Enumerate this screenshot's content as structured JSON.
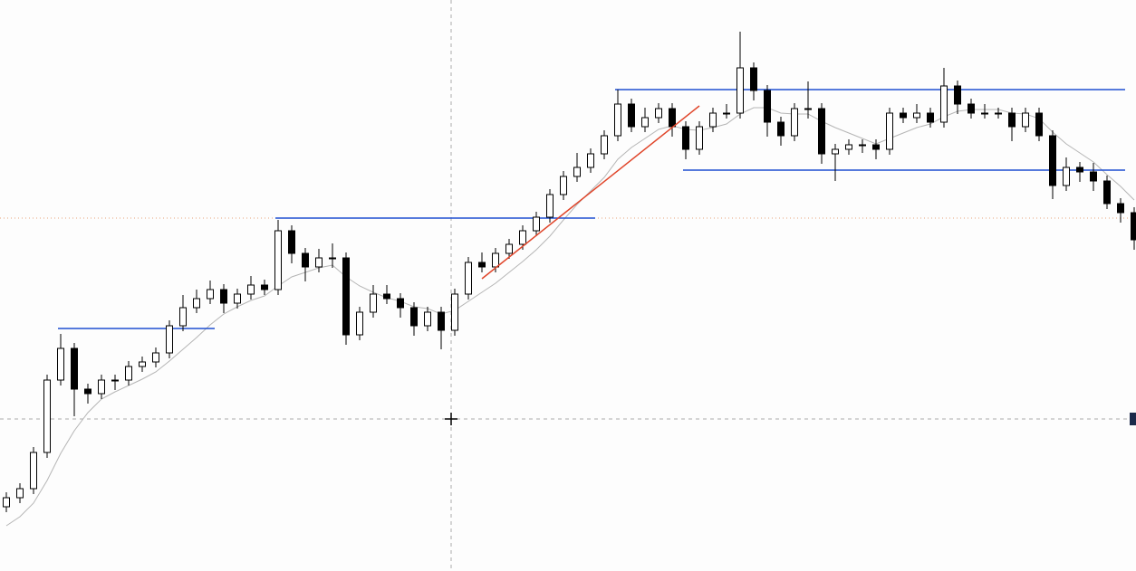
{
  "chart_data": {
    "type": "candlestick",
    "ylim": [
      0,
      631
    ],
    "up_color": "#ffffff",
    "down_color": "#000000",
    "edge_color": "#000000",
    "open": [
      71,
      81,
      91,
      131,
      211,
      246,
      201,
      196,
      211,
      211,
      226,
      231,
      241,
      271,
      291,
      301,
      311,
      296,
      306,
      316,
      311,
      376,
      351,
      336,
      346,
      346,
      261,
      286,
      306,
      301,
      291,
      271,
      286,
      266,
      306,
      341,
      336,
      351,
      361,
      376,
      391,
      416,
      436,
      446,
      461,
      481,
      516,
      491,
      501,
      511,
      491,
      466,
      491,
      506,
      506,
      556,
      531,
      496,
      481,
      511,
      511,
      461,
      466,
      471,
      471,
      466,
      506,
      501,
      506,
      496,
      536,
      516,
      506,
      506,
      506,
      491,
      506,
      481,
      426,
      446,
      441,
      431,
      406,
      396
    ],
    "high": [
      87,
      97,
      137,
      217,
      262,
      252,
      207,
      217,
      217,
      232,
      237,
      247,
      277,
      305,
      311,
      321,
      317,
      312,
      326,
      322,
      388,
      382,
      357,
      356,
      362,
      352,
      292,
      316,
      316,
      307,
      297,
      292,
      292,
      312,
      347,
      352,
      357,
      367,
      382,
      397,
      422,
      442,
      462,
      467,
      487,
      532,
      522,
      512,
      517,
      517,
      497,
      497,
      512,
      516,
      596,
      562,
      537,
      502,
      517,
      541,
      517,
      472,
      477,
      477,
      477,
      512,
      512,
      516,
      512,
      556,
      542,
      522,
      516,
      512,
      512,
      512,
      512,
      487,
      457,
      452,
      451,
      437,
      412,
      402
    ],
    "low": [
      65,
      75,
      85,
      125,
      205,
      171,
      185,
      190,
      200,
      205,
      220,
      225,
      235,
      265,
      285,
      295,
      285,
      290,
      300,
      305,
      305,
      340,
      320,
      330,
      335,
      250,
      255,
      280,
      295,
      280,
      260,
      265,
      245,
      260,
      300,
      330,
      330,
      345,
      355,
      370,
      385,
      410,
      430,
      440,
      455,
      475,
      485,
      485,
      495,
      480,
      455,
      460,
      485,
      500,
      500,
      520,
      480,
      470,
      475,
      500,
      450,
      431,
      460,
      462,
      455,
      460,
      495,
      495,
      490,
      490,
      505,
      500,
      500,
      500,
      475,
      485,
      475,
      411,
      420,
      430,
      420,
      400,
      385,
      355
    ],
    "close": [
      81,
      91,
      131,
      211,
      246,
      201,
      196,
      211,
      211,
      226,
      231,
      241,
      271,
      291,
      301,
      311,
      296,
      306,
      316,
      311,
      376,
      351,
      336,
      346,
      346,
      261,
      286,
      306,
      301,
      291,
      271,
      286,
      266,
      306,
      341,
      336,
      351,
      361,
      376,
      391,
      416,
      436,
      446,
      461,
      481,
      516,
      491,
      501,
      511,
      491,
      466,
      491,
      506,
      506,
      556,
      531,
      496,
      481,
      511,
      511,
      461,
      466,
      471,
      471,
      466,
      506,
      501,
      506,
      496,
      536,
      516,
      506,
      506,
      506,
      491,
      506,
      481,
      426,
      446,
      441,
      431,
      406,
      396,
      366
    ],
    "ma": {
      "color": "#b5b5b5",
      "values": [
        50,
        60,
        75,
        100,
        130,
        155,
        175,
        190,
        198,
        205,
        212,
        220,
        232,
        245,
        258,
        272,
        284,
        292,
        299,
        304,
        315,
        325,
        330,
        335,
        338,
        325,
        315,
        308,
        302,
        298,
        292,
        290,
        284,
        288,
        298,
        308,
        318,
        330,
        342,
        355,
        370,
        388,
        405,
        420,
        435,
        455,
        468,
        478,
        488,
        492,
        488,
        487,
        490,
        494,
        505,
        512,
        512,
        506,
        505,
        505,
        497,
        490,
        484,
        478,
        472,
        478,
        484,
        490,
        494,
        502,
        508,
        510,
        510,
        510,
        506,
        505,
        500,
        485,
        472,
        462,
        452,
        438,
        425,
        410
      ]
    },
    "levels": [
      {
        "color": "#1f4fd1",
        "value": 268,
        "from": 4,
        "to": 16
      },
      {
        "color": "#1f4fd1",
        "value": 390,
        "from": 20,
        "to": 44
      },
      {
        "color": "#1f4fd1",
        "value": 532,
        "from": 45,
        "to": 83
      },
      {
        "color": "#1f4fd1",
        "value": 443,
        "from": 50,
        "to": 83
      }
    ],
    "trendline": {
      "color": "#e0452a",
      "from": 35,
      "to": 51,
      "values": [
        323,
        514
      ]
    }
  }
}
